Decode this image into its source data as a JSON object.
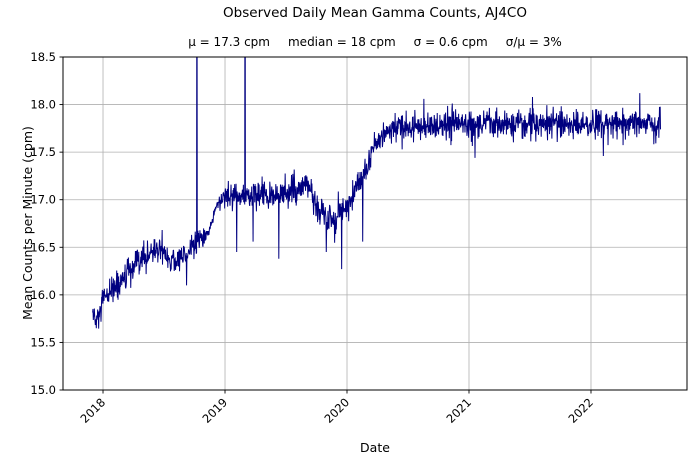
{
  "chart_data": {
    "type": "line",
    "title": "Observed Daily Mean Gamma Counts, AJ4CO",
    "stats_items": [
      "μ = 17.3 cpm",
      "median = 18 cpm",
      "σ = 0.6 cpm",
      "σ/μ = 3%"
    ],
    "xlabel": "Date",
    "ylabel": "Mean Counts per Minute (cpm)",
    "x_unit": "year",
    "xlim": [
      2017.672,
      2022.787
    ],
    "ylim": [
      15.0,
      18.5
    ],
    "xtick_values": [
      2018,
      2019,
      2020,
      2021,
      2022
    ],
    "xtick_labels": [
      "2018",
      "2019",
      "2020",
      "2021",
      "2022"
    ],
    "ytick_values": [
      15.0,
      15.5,
      16.0,
      16.5,
      17.0,
      17.5,
      18.0,
      18.5
    ],
    "ytick_labels": [
      "15.0",
      "15.5",
      "16.0",
      "16.5",
      "17.0",
      "17.5",
      "18.0",
      "18.5"
    ],
    "grid": true,
    "legend": false,
    "colors": {
      "line": "#000080",
      "grid": "#b0b0b0",
      "axes": "#000000",
      "text": "#000000",
      "background": "#ffffff"
    },
    "series": [
      {
        "name": "observed daily mean gamma counts",
        "sampling": "daily",
        "x_start": 2017.915,
        "x_end": 2022.57,
        "noise_seed": 12345,
        "trend_points": [
          [
            2017.915,
            15.82,
            0.09
          ],
          [
            2017.945,
            15.68,
            0.08
          ],
          [
            2018.0,
            15.92,
            0.08
          ],
          [
            2018.06,
            16.03,
            0.08
          ],
          [
            2018.15,
            16.14,
            0.08
          ],
          [
            2018.25,
            16.27,
            0.08
          ],
          [
            2018.35,
            16.4,
            0.08
          ],
          [
            2018.46,
            16.5,
            0.075
          ],
          [
            2018.53,
            16.4,
            0.075
          ],
          [
            2018.6,
            16.34,
            0.075
          ],
          [
            2018.67,
            16.44,
            0.075
          ],
          [
            2018.75,
            16.52,
            0.065
          ],
          [
            2018.83,
            16.6,
            0.055
          ],
          [
            2018.865,
            16.66,
            0.02
          ],
          [
            2018.935,
            16.95,
            0.02
          ],
          [
            2019.0,
            17.02,
            0.065
          ],
          [
            2019.15,
            17.05,
            0.07
          ],
          [
            2019.35,
            17.04,
            0.075
          ],
          [
            2019.55,
            17.09,
            0.075
          ],
          [
            2019.68,
            17.14,
            0.065
          ],
          [
            2019.75,
            16.95,
            0.075
          ],
          [
            2019.82,
            16.84,
            0.085
          ],
          [
            2019.91,
            16.8,
            0.09
          ],
          [
            2019.99,
            16.92,
            0.08
          ],
          [
            2020.07,
            17.08,
            0.075
          ],
          [
            2020.14,
            17.27,
            0.075
          ],
          [
            2020.21,
            17.5,
            0.07
          ],
          [
            2020.28,
            17.67,
            0.065
          ],
          [
            2020.38,
            17.75,
            0.075
          ],
          [
            2020.6,
            17.77,
            0.078
          ],
          [
            2021.0,
            17.8,
            0.078
          ],
          [
            2021.4,
            17.78,
            0.078
          ],
          [
            2021.8,
            17.8,
            0.078
          ],
          [
            2022.2,
            17.81,
            0.078
          ],
          [
            2022.57,
            17.8,
            0.078
          ]
        ],
        "spikes": [
          [
            2018.685,
            16.1
          ],
          [
            2018.77,
            21.0
          ],
          [
            2019.095,
            16.45
          ],
          [
            2019.165,
            21.0
          ],
          [
            2019.23,
            16.56
          ],
          [
            2019.44,
            16.38
          ],
          [
            2019.83,
            16.45
          ],
          [
            2019.955,
            16.27
          ],
          [
            2020.13,
            16.56
          ],
          [
            2020.63,
            18.06
          ],
          [
            2021.05,
            17.44
          ],
          [
            2021.52,
            18.08
          ],
          [
            2022.1,
            17.46
          ],
          [
            2022.4,
            18.12
          ]
        ]
      }
    ]
  }
}
